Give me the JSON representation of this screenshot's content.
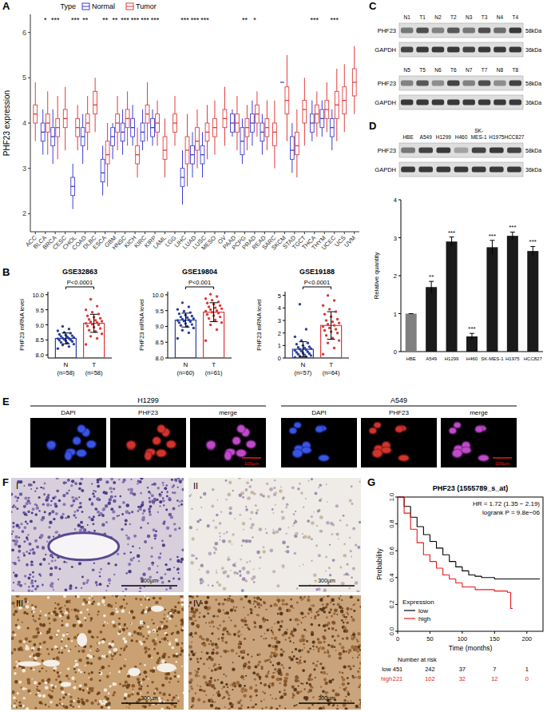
{
  "chart_data": [
    {
      "type": "box",
      "panel": "A",
      "ylabel": "PHF23 expression",
      "legend_title": "Type",
      "legend": "top",
      "ylim": [
        1.6,
        6.4
      ],
      "yticks": [
        2,
        3,
        4,
        5,
        6
      ],
      "categories": [
        "ACC",
        "BLCA",
        "BRCA",
        "CESC",
        "CHOL",
        "COAD",
        "DLBC",
        "ESCA",
        "GBM",
        "HNSC",
        "KICH",
        "KIRC",
        "KIRP",
        "LAML",
        "LGG",
        "LIHC",
        "LUAD",
        "LUSC",
        "MESO",
        "OV",
        "PAAD",
        "PCPG",
        "PRAD",
        "READ",
        "SARC",
        "SKCM",
        "STAD",
        "TGCT",
        "THCA",
        "THYM",
        "UCEC",
        "UCS",
        "UVM"
      ],
      "series": [
        {
          "name": "Normal",
          "color": "#3d3dd6",
          "whisker_low": [
            null,
            3.3,
            3.1,
            null,
            2.1,
            3.1,
            null,
            2.4,
            3.2,
            3.3,
            3.5,
            3.4,
            3.5,
            null,
            null,
            2.2,
            2.8,
            2.8,
            null,
            null,
            3.7,
            3.1,
            3.5,
            3.3,
            null,
            4.9,
            2.9,
            null,
            3.6,
            3.7,
            3.4,
            null,
            null
          ],
          "q1": [
            null,
            3.6,
            3.5,
            null,
            2.4,
            3.5,
            null,
            2.7,
            3.5,
            3.6,
            3.7,
            3.6,
            3.7,
            null,
            null,
            2.6,
            3.1,
            3.1,
            null,
            null,
            3.8,
            3.3,
            3.8,
            3.6,
            null,
            4.9,
            3.2,
            null,
            3.8,
            3.9,
            3.7,
            null,
            null
          ],
          "median": [
            null,
            3.8,
            3.7,
            null,
            2.6,
            3.7,
            null,
            2.9,
            3.7,
            3.8,
            3.9,
            3.8,
            3.9,
            null,
            null,
            2.8,
            3.3,
            3.3,
            null,
            null,
            4.0,
            3.6,
            4.0,
            3.8,
            null,
            4.9,
            3.4,
            null,
            4.0,
            4.1,
            3.9,
            null,
            null
          ],
          "q3": [
            null,
            4.0,
            3.9,
            null,
            2.8,
            3.9,
            null,
            3.2,
            3.9,
            4.0,
            4.1,
            4.0,
            4.1,
            null,
            null,
            3.0,
            3.5,
            3.5,
            null,
            null,
            4.2,
            3.9,
            4.2,
            4.0,
            null,
            4.9,
            3.7,
            null,
            4.2,
            4.3,
            4.1,
            null,
            null
          ],
          "whisker_high": [
            null,
            4.3,
            4.3,
            null,
            3.1,
            4.2,
            null,
            3.5,
            4.0,
            4.3,
            4.4,
            4.3,
            4.3,
            null,
            null,
            3.4,
            3.8,
            3.8,
            null,
            null,
            4.3,
            4.1,
            4.5,
            4.2,
            null,
            4.9,
            4.0,
            null,
            4.5,
            4.5,
            4.3,
            null,
            null
          ]
        },
        {
          "name": "Tumor",
          "color": "#e23b3b",
          "whisker_low": [
            3.6,
            3.3,
            3.2,
            3.4,
            3.4,
            3.4,
            3.8,
            2.6,
            3.4,
            3.5,
            2.8,
            3.6,
            3.5,
            2.8,
            3.5,
            2.6,
            3.0,
            3.2,
            3.3,
            3.5,
            3.4,
            3.4,
            3.7,
            3.4,
            3.0,
            3.6,
            2.8,
            3.5,
            3.7,
            3.8,
            3.6,
            3.8,
            4.2
          ],
          "q1": [
            4.0,
            3.8,
            3.7,
            3.9,
            3.7,
            3.8,
            4.2,
            3.1,
            3.8,
            3.9,
            3.1,
            4.0,
            3.8,
            3.2,
            3.8,
            3.1,
            3.4,
            3.6,
            3.7,
            3.9,
            3.8,
            3.7,
            4.0,
            3.7,
            3.5,
            4.2,
            3.3,
            4.0,
            4.0,
            4.1,
            4.1,
            4.2,
            4.6
          ],
          "median": [
            4.2,
            4.0,
            3.9,
            4.1,
            3.9,
            4.0,
            4.4,
            3.3,
            4.0,
            4.1,
            3.3,
            4.2,
            4.0,
            3.4,
            4.0,
            3.4,
            3.6,
            3.8,
            3.9,
            4.1,
            4.0,
            3.9,
            4.2,
            3.9,
            3.8,
            4.5,
            3.5,
            4.3,
            4.2,
            4.3,
            4.4,
            4.5,
            4.9
          ],
          "q3": [
            4.4,
            4.2,
            4.1,
            4.3,
            4.1,
            4.2,
            4.7,
            3.6,
            4.2,
            4.3,
            3.5,
            4.4,
            4.2,
            3.7,
            4.2,
            3.7,
            3.9,
            4.0,
            4.1,
            4.3,
            4.2,
            4.1,
            4.4,
            4.1,
            4.0,
            4.8,
            3.8,
            4.5,
            4.4,
            4.5,
            4.7,
            4.8,
            5.2
          ],
          "whisker_high": [
            4.9,
            4.7,
            4.6,
            4.8,
            4.4,
            4.6,
            5.0,
            4.0,
            4.6,
            4.7,
            3.9,
            4.9,
            4.5,
            4.1,
            4.6,
            4.2,
            4.3,
            4.4,
            4.5,
            4.8,
            4.6,
            4.4,
            4.7,
            4.5,
            4.5,
            5.5,
            4.3,
            5.0,
            4.7,
            4.9,
            5.2,
            5.3,
            5.7
          ]
        }
      ],
      "significance": [
        null,
        "*",
        "***",
        null,
        "***",
        "**",
        null,
        "**",
        "**",
        "***",
        "***",
        "***",
        "***",
        null,
        null,
        "***",
        "***",
        "***",
        null,
        null,
        null,
        "**",
        "*",
        null,
        null,
        null,
        null,
        null,
        "***",
        null,
        "***",
        null,
        null
      ]
    },
    {
      "type": "scatter",
      "panel": "B",
      "title": "GSE32863",
      "ylabel": "PHF23 mRNA level",
      "p_value": "P<0.0001",
      "ylim": [
        7.9,
        10.1
      ],
      "yticks": [
        {
          "value": 8,
          "label": "8.0"
        },
        {
          "value": 8.5,
          "label": "8.5"
        },
        {
          "value": 9,
          "label": "9.0"
        },
        {
          "value": 9.5,
          "label": "9.5"
        },
        {
          "value": 10,
          "label": "10.0"
        }
      ],
      "groups": [
        {
          "label": "N",
          "n_label": "(n=58)",
          "color": "#2a3f9d",
          "mean": 8.55,
          "sd": 0.18,
          "points": [
            8.21,
            8.28,
            8.33,
            8.36,
            8.4,
            8.42,
            8.45,
            8.47,
            8.49,
            8.5,
            8.52,
            8.54,
            8.55,
            8.56,
            8.58,
            8.6,
            8.62,
            8.64,
            8.66,
            8.68,
            8.72,
            8.75,
            8.8,
            8.86,
            8.95
          ]
        },
        {
          "label": "T",
          "n_label": "(n=58)",
          "color": "#d93a3a",
          "mean": 9.05,
          "sd": 0.3,
          "points": [
            8.35,
            8.55,
            8.62,
            8.7,
            8.78,
            8.82,
            8.88,
            8.92,
            8.96,
            9.0,
            9.02,
            9.05,
            9.08,
            9.1,
            9.12,
            9.15,
            9.18,
            9.22,
            9.25,
            9.3,
            9.36,
            9.42,
            9.5,
            9.62,
            9.85
          ]
        }
      ]
    },
    {
      "type": "scatter",
      "title": "GSE19804",
      "ylabel": "PHF23 mRNA level",
      "p_value": "P<0.001",
      "ylim": [
        8.0,
        10.1
      ],
      "yticks": [
        {
          "value": 8,
          "label": "8.0"
        },
        {
          "value": 8.5,
          "label": "8.5"
        },
        {
          "value": 9,
          "label": "9.0"
        },
        {
          "value": 9.5,
          "label": "9.5"
        },
        {
          "value": 10,
          "label": "10.0"
        }
      ],
      "groups": [
        {
          "label": "N",
          "n_label": "(n=60)",
          "color": "#2a3f9d",
          "mean": 9.2,
          "sd": 0.22,
          "points": [
            8.62,
            8.8,
            8.88,
            8.95,
            9.0,
            9.03,
            9.06,
            9.09,
            9.12,
            9.15,
            9.17,
            9.19,
            9.21,
            9.23,
            9.25,
            9.28,
            9.3,
            9.33,
            9.36,
            9.4,
            9.44,
            9.48,
            9.54,
            9.62,
            9.75
          ]
        },
        {
          "label": "T",
          "n_label": "(n=61)",
          "color": "#d93a3a",
          "mean": 9.45,
          "sd": 0.3,
          "points": [
            8.55,
            8.9,
            9.05,
            9.12,
            9.2,
            9.25,
            9.3,
            9.34,
            9.38,
            9.42,
            9.45,
            9.48,
            9.5,
            9.53,
            9.56,
            9.59,
            9.62,
            9.66,
            9.7,
            9.74,
            9.78,
            9.83,
            9.88,
            9.95,
            10.02
          ]
        }
      ]
    },
    {
      "type": "scatter",
      "title": "GSE19188",
      "ylabel": "PHF23 mRNA level",
      "p_value": "P<0.0001",
      "ylim": [
        0,
        5.3
      ],
      "yticks": [
        0,
        1,
        2,
        3,
        4,
        5
      ],
      "groups": [
        {
          "label": "N",
          "n_label": "(n=57)",
          "color": "#2a3f9d",
          "mean": 0.7,
          "sd": 0.6,
          "points": [
            0.05,
            0.1,
            0.15,
            0.2,
            0.25,
            0.3,
            0.35,
            0.4,
            0.45,
            0.5,
            0.55,
            0.6,
            0.65,
            0.7,
            0.75,
            0.8,
            0.85,
            0.9,
            1.0,
            1.1,
            1.2,
            1.4,
            1.7,
            2.3,
            4.3
          ]
        },
        {
          "label": "T",
          "n_label": "(n=64)",
          "color": "#d93a3a",
          "mean": 2.6,
          "sd": 1.1,
          "points": [
            0.3,
            0.8,
            1.2,
            1.4,
            1.6,
            1.8,
            2.0,
            2.1,
            2.2,
            2.3,
            2.4,
            2.5,
            2.6,
            2.7,
            2.8,
            2.9,
            3.0,
            3.1,
            3.3,
            3.5,
            3.7,
            3.9,
            4.2,
            4.6,
            5.0
          ]
        }
      ]
    },
    {
      "type": "bar",
      "ylabel": "Relative quantity",
      "ylim": [
        0,
        4
      ],
      "yticks": [
        0,
        1,
        2,
        3,
        4
      ],
      "categories": [
        "HBE",
        "A549",
        "H1299",
        "H460",
        "SK-MES-1",
        "H1975",
        "HCC827"
      ],
      "values": [
        1,
        1.7,
        2.9,
        0.4,
        2.75,
        3.05,
        2.65
      ],
      "errors": [
        0,
        0.15,
        0.12,
        0.08,
        0.18,
        0.1,
        0.12
      ],
      "colors": [
        "#7f7f7f",
        "#1a1a1a",
        "#1a1a1a",
        "#1a1a1a",
        "#1a1a1a",
        "#1a1a1a",
        "#1a1a1a"
      ],
      "significance": [
        null,
        "**",
        "***",
        "***",
        "***",
        "***",
        "***"
      ]
    },
    {
      "type": "line",
      "line_style": "step",
      "panel": "G",
      "title": "PHF23 (1555789_s_at)",
      "annotations": [
        "HR = 1.72 (1.35 − 2.19)",
        "logrank P = 9.8e−06"
      ],
      "xlabel": "Time (months)",
      "ylabel": "Probability",
      "legend_title": "Expression",
      "legend": "bottom-left",
      "xlim": [
        0,
        225
      ],
      "xticks": [
        0,
        50,
        100,
        150,
        200
      ],
      "ylim": [
        0,
        1
      ],
      "yticks": [
        {
          "value": 0,
          "label": "0.0"
        },
        {
          "value": 0.2,
          "label": "0.2"
        },
        {
          "value": 0.4,
          "label": "0.4"
        },
        {
          "value": 0.6,
          "label": "0.6"
        },
        {
          "value": 0.8,
          "label": "0.8"
        },
        {
          "value": 1,
          "label": "1.0"
        }
      ],
      "series": [
        {
          "name": "low",
          "color": "#000000",
          "x": [
            0,
            10,
            20,
            30,
            40,
            50,
            60,
            70,
            80,
            90,
            100,
            110,
            120,
            130,
            150,
            220
          ],
          "values": [
            1.0,
            0.93,
            0.85,
            0.78,
            0.72,
            0.67,
            0.62,
            0.57,
            0.52,
            0.48,
            0.45,
            0.42,
            0.41,
            0.4,
            0.39,
            0.39
          ]
        },
        {
          "name": "high",
          "color": "#e41a1c",
          "x": [
            0,
            10,
            20,
            30,
            40,
            50,
            60,
            70,
            80,
            90,
            100,
            120,
            150,
            170,
            175,
            178
          ],
          "values": [
            1.0,
            0.88,
            0.76,
            0.66,
            0.57,
            0.52,
            0.47,
            0.42,
            0.39,
            0.36,
            0.33,
            0.31,
            0.3,
            0.29,
            0.17,
            0.17
          ]
        }
      ],
      "risk_table": {
        "title": "Number at risk",
        "times": [
          0,
          50,
          100,
          150,
          200
        ],
        "rows": [
          {
            "name": "low",
            "color": "#000000",
            "values": [
              451,
              242,
              37,
              7,
              1
            ]
          },
          {
            "name": "high",
            "color": "#e41a1c",
            "values": [
              221,
              102,
              32,
              12,
              0
            ]
          }
        ]
      }
    }
  ],
  "blots": [
    {
      "panel": "C",
      "lanes": [
        "N1",
        "T1",
        "N2",
        "T2",
        "N3",
        "T3",
        "N4",
        "T4"
      ],
      "rows": [
        {
          "label": "PHF23",
          "size": "58kDa",
          "intensity": [
            0.55,
            0.75,
            0.5,
            0.7,
            0.55,
            0.75,
            0.6,
            0.85
          ]
        },
        {
          "label": "GAPDH",
          "size": "36kDa",
          "intensity": [
            0.8,
            0.85,
            0.85,
            0.85,
            0.8,
            0.85,
            0.85,
            0.85
          ]
        }
      ]
    },
    {
      "lanes": [
        "N5",
        "T5",
        "N6",
        "T6",
        "N7",
        "T7",
        "N8",
        "T8"
      ],
      "rows": [
        {
          "label": "PHF23",
          "size": "58kDa",
          "intensity": [
            0.5,
            0.7,
            0.45,
            0.8,
            0.5,
            0.75,
            0.45,
            0.8
          ]
        },
        {
          "label": "GAPDH",
          "size": "36kDa",
          "intensity": [
            0.85,
            0.85,
            0.85,
            0.85,
            0.85,
            0.85,
            0.85,
            0.85
          ]
        }
      ]
    },
    {
      "panel": "D",
      "lanes": [
        "HBE",
        "A549",
        "H1299",
        "H460",
        "SK-MES-1",
        "H1975",
        "HCC827"
      ],
      "rows": [
        {
          "label": "PHF23",
          "size": "58kDa",
          "intensity": [
            0.55,
            0.8,
            0.85,
            0.35,
            0.8,
            0.85,
            0.8
          ]
        },
        {
          "label": "GAPDH",
          "size": "36kDa",
          "intensity": [
            0.85,
            0.85,
            0.85,
            0.85,
            0.85,
            0.85,
            0.85
          ]
        }
      ]
    }
  ],
  "immunofluorescence": {
    "panel": "E",
    "groups": [
      {
        "cell_line": "H1299",
        "channels": [
          "DAPI",
          "PHF23",
          "merge"
        ]
      },
      {
        "cell_line": "A549",
        "channels": [
          "DAPI",
          "PHF23",
          "merge"
        ]
      }
    ],
    "scale_bar": "100µm"
  },
  "ihc": {
    "panel": "F",
    "images": [
      "I",
      "II",
      "III",
      "IV"
    ],
    "scale_bar": "300µm"
  }
}
